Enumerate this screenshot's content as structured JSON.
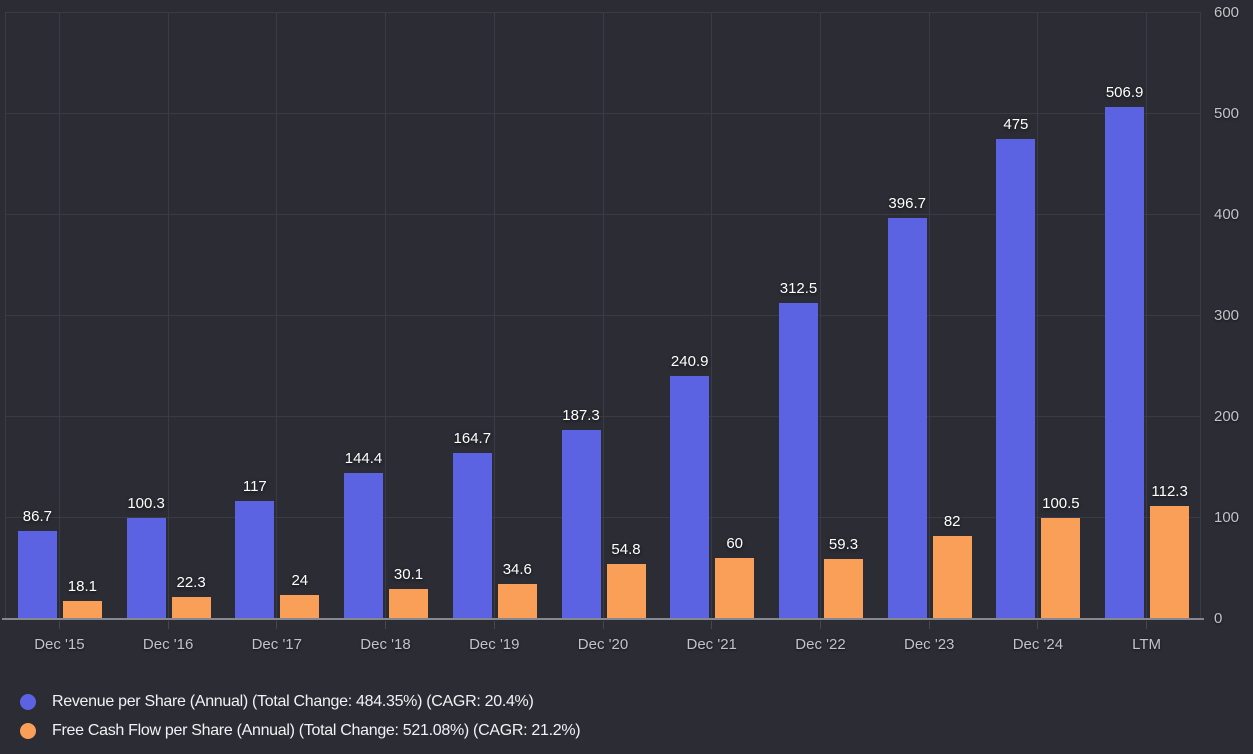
{
  "colors": {
    "background": "#2b2c34",
    "grid": "#3a3b44",
    "axis_line": "#87888f",
    "tick_mark": "#45464e",
    "tick_text": "#c2c3c9",
    "data_label": "#ffffff",
    "legend_text": "#f2f2f4",
    "revenue_series": "#5c63e3",
    "fcf_series": "#f99f58"
  },
  "chart_data": {
    "type": "bar",
    "title": "",
    "categories": [
      "Dec '15",
      "Dec '16",
      "Dec '17",
      "Dec '18",
      "Dec '19",
      "Dec '20",
      "Dec '21",
      "Dec '22",
      "Dec '23",
      "Dec '24",
      "LTM"
    ],
    "series": [
      {
        "name": "Revenue per Share (Annual) (Total Change: 484.35%) (CAGR: 20.4%)",
        "color": "#5c63e3",
        "values": [
          86.7,
          100.3,
          117,
          144.4,
          164.7,
          187.3,
          240.9,
          312.5,
          396.7,
          475,
          506.9
        ]
      },
      {
        "name": "Free Cash Flow per Share (Annual) (Total Change: 521.08%) (CAGR: 21.2%)",
        "color": "#f99f58",
        "values": [
          18.1,
          22.3,
          24,
          30.1,
          34.6,
          54.8,
          60,
          59.3,
          82,
          100.5,
          112.3
        ]
      }
    ],
    "y_axis": {
      "min": 0,
      "max": 600,
      "ticks": [
        0,
        100,
        200,
        300,
        400,
        500,
        600
      ],
      "position": "right"
    },
    "grid": "on",
    "data_labels": "on",
    "legend_position": "bottom-left"
  }
}
